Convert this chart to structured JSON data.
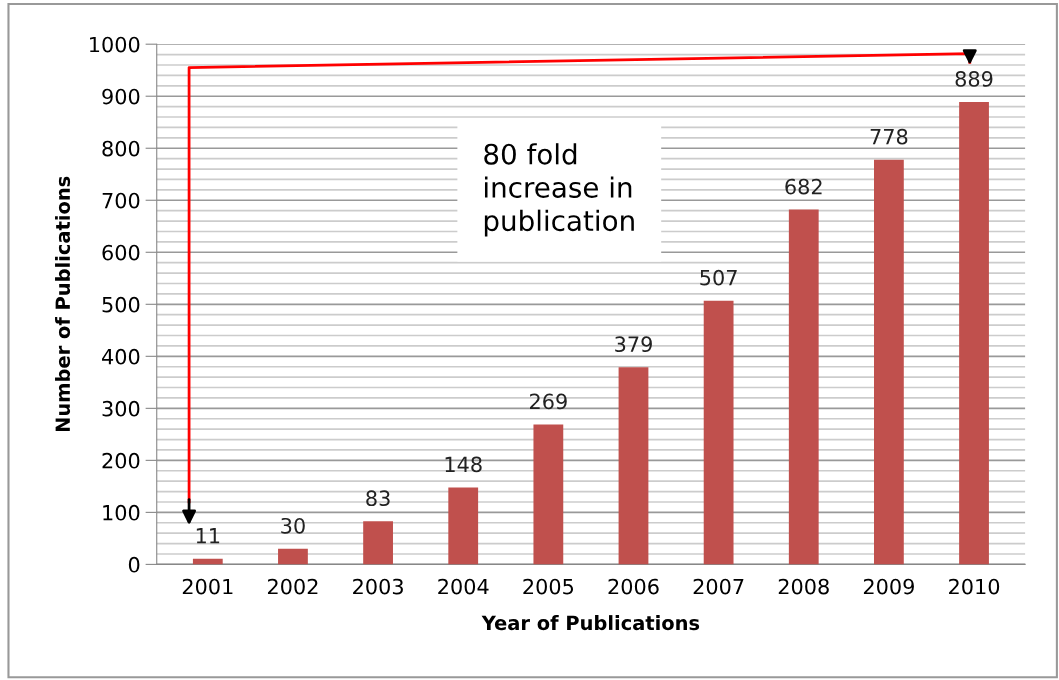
{
  "chart_data": {
    "type": "bar",
    "xlabel": "Year of Publications",
    "ylabel": "Number of Publications",
    "categories": [
      "2001",
      "2002",
      "2003",
      "2004",
      "2005",
      "2006",
      "2007",
      "2008",
      "2009",
      "2010"
    ],
    "values": [
      11,
      30,
      83,
      148,
      269,
      379,
      507,
      682,
      778,
      889
    ],
    "color": "#c0504d",
    "data_labels": true,
    "ylim": [
      0,
      1000
    ],
    "yticks": [
      0,
      {
        "value": 20,
        "label": null
      },
      {
        "value": 40,
        "label": null
      },
      {
        "value": 60,
        "label": null
      },
      {
        "value": 80,
        "label": null
      },
      100,
      {
        "value": 120,
        "label": null
      },
      {
        "value": 140,
        "label": null
      },
      {
        "value": 160,
        "label": null
      },
      {
        "value": 180,
        "label": null
      },
      200,
      {
        "value": 220,
        "label": null
      },
      {
        "value": 240,
        "label": null
      },
      {
        "value": 260,
        "label": null
      },
      {
        "value": 280,
        "label": null
      },
      300,
      {
        "value": 320,
        "label": null
      },
      {
        "value": 340,
        "label": null
      },
      {
        "value": 360,
        "label": null
      },
      {
        "value": 380,
        "label": null
      },
      400,
      {
        "value": 420,
        "label": null
      },
      {
        "value": 440,
        "label": null
      },
      {
        "value": 460,
        "label": null
      },
      {
        "value": 480,
        "label": null
      },
      500,
      {
        "value": 520,
        "label": null
      },
      {
        "value": 540,
        "label": null
      },
      {
        "value": 560,
        "label": null
      },
      {
        "value": 580,
        "label": null
      },
      600,
      {
        "value": 620,
        "label": null
      },
      {
        "value": 640,
        "label": null
      },
      {
        "value": 660,
        "label": null
      },
      {
        "value": 680,
        "label": null
      },
      700,
      {
        "value": 720,
        "label": null
      },
      {
        "value": 740,
        "label": null
      },
      {
        "value": 760,
        "label": null
      },
      {
        "value": 780,
        "label": null
      },
      800,
      {
        "value": 820,
        "label": null
      },
      {
        "value": 840,
        "label": null
      },
      {
        "value": 860,
        "label": null
      },
      {
        "value": 880,
        "label": null
      },
      900,
      {
        "value": 920,
        "label": null
      },
      {
        "value": 940,
        "label": null
      },
      {
        "value": 960,
        "label": null
      },
      {
        "value": 980,
        "label": null
      },
      1000
    ],
    "grid": "y",
    "annotations": [
      "80 fold\nincrease in\npublication"
    ]
  }
}
